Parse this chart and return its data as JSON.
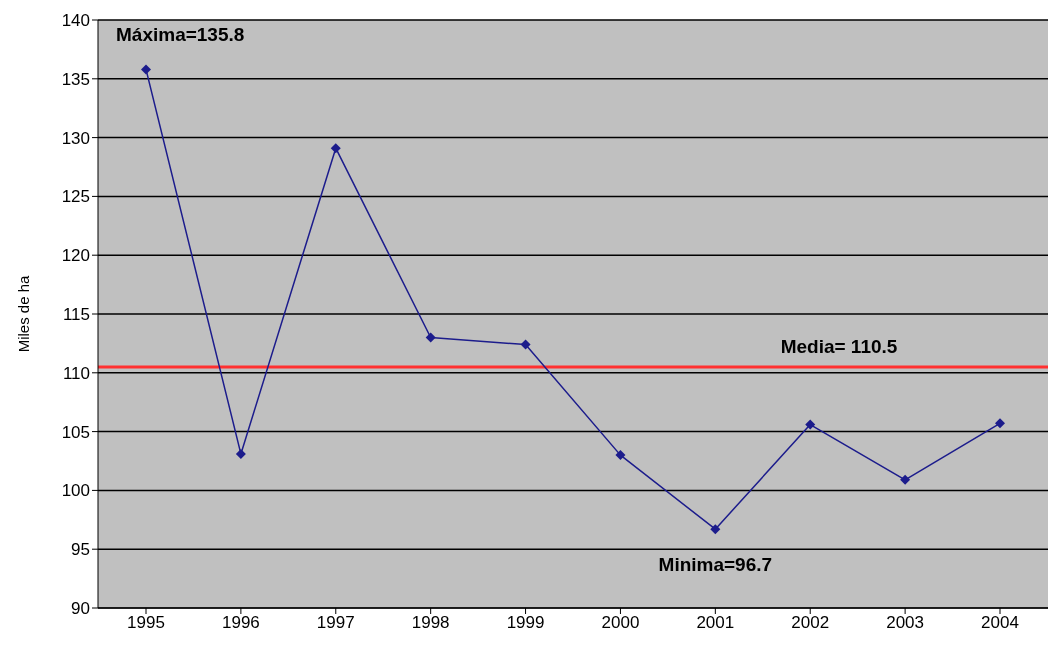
{
  "chart_data": {
    "type": "line",
    "ylabel": "Miles de ha",
    "categories": [
      "1995",
      "1996",
      "1997",
      "1998",
      "1999",
      "2000",
      "2001",
      "2002",
      "2003",
      "2004"
    ],
    "series": [
      {
        "color": "#1c1c8c",
        "values": [
          135.8,
          103.1,
          129.1,
          113.0,
          112.4,
          103.0,
          96.7,
          105.6,
          100.9,
          105.7
        ]
      }
    ],
    "ylim": [
      90,
      140
    ],
    "yticks": [
      90,
      95,
      100,
      105,
      110,
      115,
      120,
      125,
      130,
      135,
      140
    ],
    "grid": "y",
    "marker": "diamond",
    "line_style": "solid",
    "ref_lines": [
      {
        "axis": "y",
        "value": 110.5,
        "label": "Media= 110.5",
        "color": "#ff3030"
      }
    ],
    "annotations": [
      {
        "text": "Máxima=135.8",
        "x": "1995",
        "y": 135.8
      },
      {
        "text": "Minima=96.7",
        "x": "2001",
        "y": 96.7
      }
    ]
  }
}
